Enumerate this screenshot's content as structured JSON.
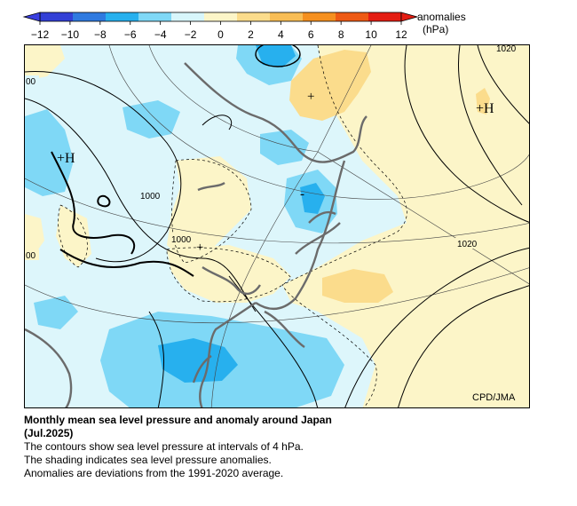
{
  "colorbar": {
    "ticks": [
      "−12",
      "−10",
      "−8",
      "−6",
      "−4",
      "−2",
      "0",
      "2",
      "4",
      "6",
      "8",
      "10",
      "12"
    ],
    "colors": [
      "#3340d6",
      "#2f7ae0",
      "#27b0ee",
      "#7fd8f6",
      "#d8f6fb",
      "#fcf5c8",
      "#fbdc8c",
      "#f8bd55",
      "#f5901f",
      "#ee5a14",
      "#e41d12"
    ],
    "units_label": "anomalies",
    "units": "(hPa)"
  },
  "map": {
    "contour_labels": [
      "00",
      "1000",
      "1000",
      "00",
      "1020",
      "1020"
    ],
    "pressure_marks": [
      {
        "symbol": "+H",
        "kind": "high"
      },
      {
        "symbol": "+H",
        "kind": "high"
      },
      {
        "symbol": "+",
        "kind": "center"
      },
      {
        "symbol": "+",
        "kind": "center"
      },
      {
        "symbol": "-",
        "kind": "low"
      }
    ],
    "credit": "CPD/JMA"
  },
  "caption": {
    "title_line1": "Monthly mean sea level pressure and anomaly around Japan",
    "title_line2": "(Jul.2025)",
    "line1": "The contours show sea level pressure at intervals of 4 hPa.",
    "line2": "The shading indicates sea level pressure anomalies.",
    "line3": "Anomalies are deviations from the 1991-2020 average."
  }
}
